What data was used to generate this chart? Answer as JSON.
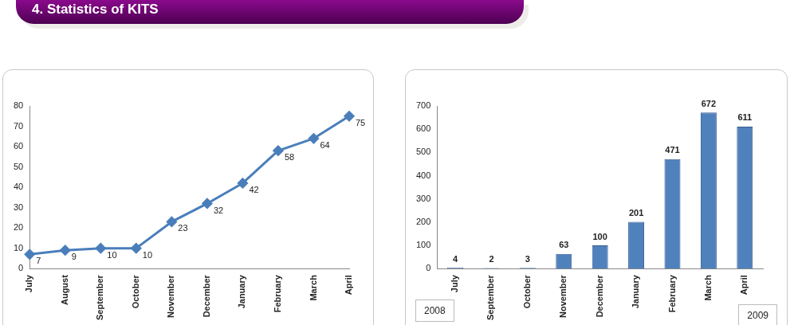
{
  "chart_data": [
    {
      "type": "line",
      "title": "4. Statistics of KITS",
      "categories": [
        "July",
        "August",
        "September",
        "October",
        "November",
        "December",
        "January",
        "February",
        "March",
        "April"
      ],
      "series": [
        {
          "color": "#4a7ebb",
          "values": [
            7,
            9,
            10,
            10,
            23,
            32,
            42,
            58,
            64,
            75
          ]
        }
      ],
      "ylim": [
        0,
        80
      ],
      "yticks": [
        0,
        10,
        20,
        30,
        40,
        50,
        60,
        70,
        80
      ],
      "marker": "diamond",
      "data_labels": true
    },
    {
      "type": "bar",
      "categories": [
        "July",
        "September",
        "October",
        "November",
        "December",
        "January",
        "February",
        "March",
        "April"
      ],
      "series": [
        {
          "color": "#4f81bd",
          "values": [
            4,
            2,
            3,
            63,
            100,
            201,
            471,
            672,
            611
          ]
        }
      ],
      "ylim": [
        0,
        700
      ],
      "yticks": [
        0,
        100,
        200,
        300,
        400,
        500,
        600,
        700
      ],
      "data_labels": true,
      "annotations": [
        "2008",
        "2009"
      ]
    }
  ]
}
